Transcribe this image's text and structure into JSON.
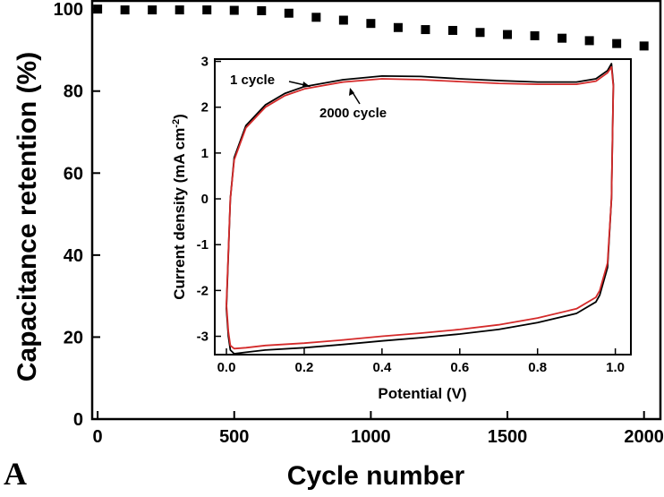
{
  "chart_data": [
    {
      "type": "scatter",
      "panel_label": "A",
      "xlabel": "Cycle number",
      "ylabel": "Capacitance retention (%)",
      "xlim": [
        -20,
        2060
      ],
      "ylim": [
        0,
        102
      ],
      "xticks": [
        0,
        500,
        1000,
        1500,
        2000
      ],
      "yticks": [
        0,
        20,
        40,
        60,
        80,
        100
      ],
      "series": [
        {
          "marker": "square",
          "color": "#000000",
          "x": [
            0,
            100,
            200,
            300,
            400,
            500,
            600,
            700,
            800,
            900,
            1000,
            1100,
            1200,
            1300,
            1400,
            1500,
            1600,
            1700,
            1800,
            1900,
            2000
          ],
          "y": [
            100,
            99.8,
            99.8,
            99.8,
            99.8,
            99.7,
            99.6,
            99.0,
            98.0,
            97.3,
            96.5,
            95.5,
            95.0,
            94.8,
            94.3,
            93.8,
            93.5,
            92.9,
            92.3,
            91.6,
            91.0
          ]
        }
      ]
    },
    {
      "type": "line",
      "xlabel": "Potential (V)",
      "ylabel": "Current density (mA cm",
      "ylabel_sup": "-2",
      "ylabel_end": ")",
      "xlim": [
        -0.03,
        1.04
      ],
      "ylim": [
        -3.4,
        3.05
      ],
      "xticks": [
        0.0,
        0.2,
        0.4,
        0.6,
        0.8,
        1.0
      ],
      "xtick_labels": [
        "0.0",
        "0.2",
        "0.4",
        "0.6",
        "0.8",
        "1.0"
      ],
      "yticks": [
        -3,
        -2,
        -1,
        0,
        1,
        2,
        3
      ],
      "annotations": [
        "1 cycle",
        "2000 cycle"
      ],
      "series": [
        {
          "name": "1 cycle",
          "color": "#000000",
          "x": [
            0.0,
            0.01,
            0.02,
            0.05,
            0.1,
            0.15,
            0.2,
            0.3,
            0.4,
            0.5,
            0.6,
            0.7,
            0.8,
            0.9,
            0.95,
            0.98,
            0.99,
            0.995,
            0.99,
            0.98,
            0.96,
            0.95,
            0.9,
            0.8,
            0.7,
            0.6,
            0.5,
            0.4,
            0.3,
            0.2,
            0.1,
            0.05,
            0.02,
            0.01,
            0.005,
            0.0
          ],
          "y": [
            -2.4,
            0.0,
            0.9,
            1.6,
            2.05,
            2.3,
            2.45,
            2.6,
            2.68,
            2.67,
            2.62,
            2.58,
            2.55,
            2.55,
            2.62,
            2.8,
            2.95,
            2.5,
            0.0,
            -1.5,
            -2.1,
            -2.25,
            -2.5,
            -2.7,
            -2.85,
            -2.95,
            -3.03,
            -3.1,
            -3.18,
            -3.25,
            -3.3,
            -3.35,
            -3.38,
            -3.3,
            -3.0,
            -2.4
          ]
        },
        {
          "name": "2000 cycle",
          "color": "#d42a2a",
          "x": [
            0.0,
            0.01,
            0.02,
            0.05,
            0.1,
            0.15,
            0.2,
            0.3,
            0.4,
            0.5,
            0.6,
            0.7,
            0.8,
            0.9,
            0.95,
            0.98,
            0.99,
            0.995,
            0.99,
            0.98,
            0.96,
            0.95,
            0.9,
            0.8,
            0.7,
            0.6,
            0.5,
            0.4,
            0.3,
            0.2,
            0.1,
            0.05,
            0.02,
            0.01,
            0.005,
            0.0
          ],
          "y": [
            -2.3,
            0.0,
            0.85,
            1.55,
            2.0,
            2.25,
            2.4,
            2.55,
            2.62,
            2.6,
            2.56,
            2.52,
            2.5,
            2.5,
            2.57,
            2.75,
            2.88,
            2.45,
            0.0,
            -1.4,
            -2.0,
            -2.15,
            -2.4,
            -2.6,
            -2.75,
            -2.85,
            -2.93,
            -3.0,
            -3.08,
            -3.15,
            -3.2,
            -3.25,
            -3.27,
            -3.2,
            -2.9,
            -2.3
          ]
        }
      ]
    }
  ]
}
